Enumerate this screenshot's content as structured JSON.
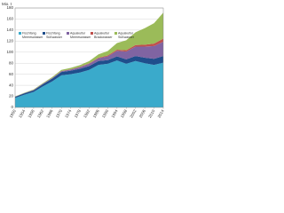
{
  "chart_data": {
    "type": "stacked_area",
    "y_label": "Mio. t",
    "x": [
      1950,
      1954,
      1958,
      1962,
      1966,
      1970,
      1974,
      1978,
      1982,
      1986,
      1990,
      1994,
      1998,
      2002,
      2006,
      2010,
      2014
    ],
    "series": [
      {
        "name": "Fischfang Meereswasser",
        "color": "#3aaacb",
        "values": [
          17,
          23,
          28,
          38,
          47,
          58,
          60,
          63,
          68,
          77,
          79,
          85,
          79,
          84,
          80,
          77,
          81
        ]
      },
      {
        "name": "Fischfang Süßwasser",
        "color": "#1f4e8c",
        "values": [
          2,
          2.5,
          3,
          4,
          5,
          6,
          6.5,
          7,
          7,
          7,
          6.5,
          7.5,
          8,
          9,
          10,
          11,
          12
        ]
      },
      {
        "name": "Aquakultur Meereswasser",
        "color": "#8064a2",
        "values": [
          0.3,
          0.4,
          0.6,
          0.8,
          1,
          1.5,
          2,
          3,
          4,
          5,
          7,
          10,
          14,
          17,
          20,
          23,
          26
        ]
      },
      {
        "name": "Aquakultur Brackwasser",
        "color": "#c0504d",
        "values": [
          0.1,
          0.1,
          0.2,
          0.2,
          0.3,
          0.4,
          0.5,
          0.6,
          0.8,
          1,
          1.5,
          2,
          2.5,
          3,
          3.5,
          4.5,
          5.5
        ]
      },
      {
        "name": "Aquakultur Süßwasser",
        "color": "#9bbb59",
        "values": [
          0.4,
          0.6,
          0.8,
          1,
          1.5,
          2,
          2.5,
          3,
          4,
          6,
          8,
          12,
          18,
          23,
          30,
          37,
          47
        ]
      }
    ],
    "xlim": [
      1950,
      2014
    ],
    "xticks": [
      1950,
      1954,
      1958,
      1962,
      1966,
      1970,
      1974,
      1978,
      1982,
      1986,
      1990,
      1994,
      1998,
      2002,
      2006,
      2010,
      2014
    ],
    "ylim": [
      0,
      180
    ],
    "yticks": [
      0,
      20,
      40,
      60,
      80,
      100,
      120,
      140,
      160,
      180
    ],
    "grid": true
  }
}
